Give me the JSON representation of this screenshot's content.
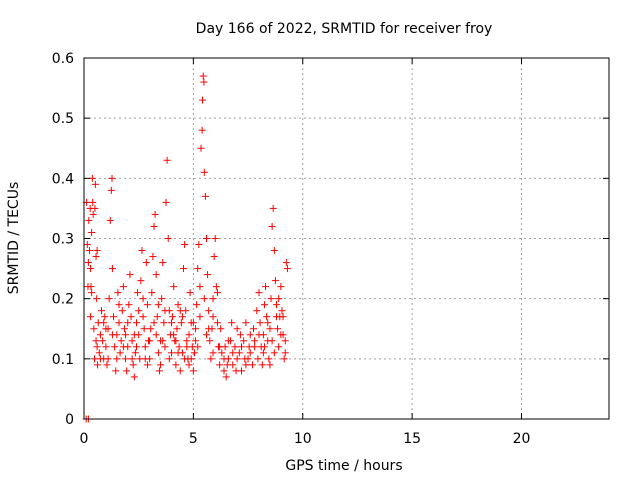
{
  "chart_data": {
    "type": "scatter",
    "title": "Day 166 of 2022, SRMTID for receiver froy",
    "xlabel": "GPS time / hours",
    "ylabel": "SRMTID / TECUs",
    "xlim": [
      0,
      24
    ],
    "ylim": [
      0,
      0.6
    ],
    "xticks": [
      0,
      5,
      10,
      15,
      20
    ],
    "xtick_labels": [
      "0",
      "5",
      "10",
      "15",
      "20"
    ],
    "yticks": [
      0,
      0.1,
      0.2,
      0.3,
      0.4,
      0.5,
      0.6
    ],
    "ytick_labels": [
      "0",
      "0.1",
      "0.2",
      "0.3",
      "0.4",
      "0.5",
      "0.6"
    ],
    "grid": true,
    "marker": "plus",
    "color": "#ff0000",
    "series": [
      {
        "name": "SRMTID",
        "points": [
          [
            0.1,
            0.0
          ],
          [
            0.2,
            0.0
          ],
          [
            0.12,
            0.36
          ],
          [
            0.15,
            0.29
          ],
          [
            0.18,
            0.22
          ],
          [
            0.2,
            0.26
          ],
          [
            0.22,
            0.33
          ],
          [
            0.25,
            0.28
          ],
          [
            0.28,
            0.35
          ],
          [
            0.3,
            0.25
          ],
          [
            0.32,
            0.22
          ],
          [
            0.35,
            0.31
          ],
          [
            0.38,
            0.4
          ],
          [
            0.4,
            0.36
          ],
          [
            0.42,
            0.34
          ],
          [
            0.45,
            0.15
          ],
          [
            0.48,
            0.1
          ],
          [
            0.5,
            0.35
          ],
          [
            0.52,
            0.39
          ],
          [
            0.55,
            0.27
          ],
          [
            0.58,
            0.2
          ],
          [
            0.6,
            0.12
          ],
          [
            0.62,
            0.09
          ],
          [
            0.65,
            0.16
          ],
          [
            0.7,
            0.11
          ],
          [
            0.75,
            0.14
          ],
          [
            0.8,
            0.18
          ],
          [
            0.85,
            0.13
          ],
          [
            0.9,
            0.1
          ],
          [
            0.95,
            0.17
          ],
          [
            1.0,
            0.12
          ],
          [
            1.05,
            0.09
          ],
          [
            1.1,
            0.15
          ],
          [
            1.15,
            0.2
          ],
          [
            1.2,
            0.33
          ],
          [
            1.25,
            0.38
          ],
          [
            1.28,
            0.4
          ],
          [
            1.3,
            0.25
          ],
          [
            1.35,
            0.17
          ],
          [
            1.4,
            0.12
          ],
          [
            1.45,
            0.08
          ],
          [
            1.5,
            0.14
          ],
          [
            1.55,
            0.21
          ],
          [
            1.6,
            0.16
          ],
          [
            1.65,
            0.11
          ],
          [
            1.7,
            0.13
          ],
          [
            1.75,
            0.18
          ],
          [
            1.8,
            0.22
          ],
          [
            1.85,
            0.15
          ],
          [
            1.9,
            0.1
          ],
          [
            1.95,
            0.08
          ],
          [
            2.0,
            0.12
          ],
          [
            2.05,
            0.19
          ],
          [
            2.1,
            0.24
          ],
          [
            2.15,
            0.17
          ],
          [
            2.2,
            0.13
          ],
          [
            2.25,
            0.09
          ],
          [
            2.3,
            0.07
          ],
          [
            2.35,
            0.11
          ],
          [
            2.4,
            0.16
          ],
          [
            2.45,
            0.21
          ],
          [
            2.5,
            0.14
          ],
          [
            2.55,
            0.1
          ],
          [
            2.6,
            0.23
          ],
          [
            2.65,
            0.28
          ],
          [
            2.7,
            0.2
          ],
          [
            2.75,
            0.15
          ],
          [
            2.8,
            0.12
          ],
          [
            2.85,
            0.26
          ],
          [
            2.9,
            0.19
          ],
          [
            2.95,
            0.13
          ],
          [
            3.0,
            0.1
          ],
          [
            3.05,
            0.15
          ],
          [
            3.1,
            0.21
          ],
          [
            3.15,
            0.27
          ],
          [
            3.2,
            0.32
          ],
          [
            3.25,
            0.34
          ],
          [
            3.3,
            0.24
          ],
          [
            3.35,
            0.17
          ],
          [
            3.4,
            0.11
          ],
          [
            3.45,
            0.08
          ],
          [
            3.5,
            0.13
          ],
          [
            3.55,
            0.2
          ],
          [
            3.6,
            0.26
          ],
          [
            3.65,
            0.16
          ],
          [
            3.7,
            0.12
          ],
          [
            3.75,
            0.36
          ],
          [
            3.8,
            0.43
          ],
          [
            3.85,
            0.3
          ],
          [
            3.9,
            0.18
          ],
          [
            3.95,
            0.14
          ],
          [
            4.0,
            0.11
          ],
          [
            4.05,
            0.17
          ],
          [
            4.1,
            0.22
          ],
          [
            4.15,
            0.13
          ],
          [
            4.2,
            0.09
          ],
          [
            4.25,
            0.15
          ],
          [
            4.3,
            0.19
          ],
          [
            4.35,
            0.12
          ],
          [
            4.4,
            0.08
          ],
          [
            4.45,
            0.16
          ],
          [
            4.5,
            0.11
          ],
          [
            4.55,
            0.25
          ],
          [
            4.6,
            0.29
          ],
          [
            4.65,
            0.18
          ],
          [
            4.7,
            0.13
          ],
          [
            4.75,
            0.1
          ],
          [
            4.8,
            0.14
          ],
          [
            4.85,
            0.21
          ],
          [
            4.9,
            0.16
          ],
          [
            4.95,
            0.12
          ],
          [
            5.0,
            0.08
          ],
          [
            5.05,
            0.11
          ],
          [
            5.1,
            0.15
          ],
          [
            5.15,
            0.19
          ],
          [
            5.2,
            0.25
          ],
          [
            5.25,
            0.29
          ],
          [
            5.3,
            0.22
          ],
          [
            5.35,
            0.45
          ],
          [
            5.4,
            0.48
          ],
          [
            5.42,
            0.53
          ],
          [
            5.45,
            0.57
          ],
          [
            5.48,
            0.56
          ],
          [
            5.5,
            0.41
          ],
          [
            5.55,
            0.37
          ],
          [
            5.6,
            0.3
          ],
          [
            5.65,
            0.24
          ],
          [
            5.7,
            0.18
          ],
          [
            5.75,
            0.13
          ],
          [
            5.8,
            0.1
          ],
          [
            5.85,
            0.15
          ],
          [
            5.9,
            0.2
          ],
          [
            5.95,
            0.27
          ],
          [
            6.0,
            0.3
          ],
          [
            6.05,
            0.22
          ],
          [
            6.1,
            0.16
          ],
          [
            6.15,
            0.12
          ],
          [
            6.2,
            0.09
          ],
          [
            6.3,
            0.11
          ],
          [
            6.4,
            0.08
          ],
          [
            6.5,
            0.07
          ],
          [
            6.6,
            0.1
          ],
          [
            6.7,
            0.13
          ],
          [
            6.8,
            0.09
          ],
          [
            6.9,
            0.12
          ],
          [
            7.0,
            0.15
          ],
          [
            7.1,
            0.11
          ],
          [
            7.2,
            0.08
          ],
          [
            7.3,
            0.13
          ],
          [
            7.4,
            0.16
          ],
          [
            7.5,
            0.1
          ],
          [
            7.6,
            0.14
          ],
          [
            7.7,
            0.09
          ],
          [
            7.8,
            0.12
          ],
          [
            7.9,
            0.18
          ],
          [
            8.0,
            0.21
          ],
          [
            8.05,
            0.16
          ],
          [
            8.1,
            0.12
          ],
          [
            8.15,
            0.09
          ],
          [
            8.2,
            0.14
          ],
          [
            8.25,
            0.19
          ],
          [
            8.3,
            0.22
          ],
          [
            8.35,
            0.17
          ],
          [
            8.4,
            0.13
          ],
          [
            8.45,
            0.1
          ],
          [
            8.5,
            0.15
          ],
          [
            8.55,
            0.2
          ],
          [
            8.6,
            0.32
          ],
          [
            8.65,
            0.35
          ],
          [
            8.7,
            0.28
          ],
          [
            8.75,
            0.23
          ],
          [
            8.8,
            0.19
          ],
          [
            8.85,
            0.15
          ],
          [
            8.9,
            0.12
          ],
          [
            8.95,
            0.17
          ],
          [
            9.0,
            0.22
          ],
          [
            9.05,
            0.18
          ],
          [
            9.1,
            0.14
          ],
          [
            9.15,
            0.1
          ],
          [
            9.2,
            0.13
          ],
          [
            9.25,
            0.26
          ],
          [
            9.3,
            0.25
          ],
          [
            0.35,
            0.21
          ],
          [
            0.6,
            0.28
          ],
          [
            0.9,
            0.16
          ],
          [
            1.1,
            0.1
          ],
          [
            1.6,
            0.19
          ],
          [
            1.9,
            0.14
          ],
          [
            2.2,
            0.1
          ],
          [
            2.4,
            0.12
          ],
          [
            2.7,
            0.17
          ],
          [
            2.9,
            0.09
          ],
          [
            3.3,
            0.14
          ],
          [
            3.5,
            0.09
          ],
          [
            3.7,
            0.18
          ],
          [
            4.0,
            0.16
          ],
          [
            4.2,
            0.13
          ],
          [
            4.4,
            0.18
          ],
          [
            4.6,
            0.1
          ],
          [
            4.8,
            0.09
          ],
          [
            5.0,
            0.16
          ],
          [
            5.2,
            0.12
          ],
          [
            5.6,
            0.14
          ],
          [
            5.9,
            0.11
          ],
          [
            6.1,
            0.21
          ],
          [
            6.25,
            0.15
          ],
          [
            6.45,
            0.12
          ],
          [
            6.55,
            0.09
          ],
          [
            6.75,
            0.16
          ],
          [
            6.95,
            0.08
          ],
          [
            7.15,
            0.14
          ],
          [
            7.35,
            0.1
          ],
          [
            7.55,
            0.12
          ],
          [
            7.75,
            0.15
          ],
          [
            7.95,
            0.1
          ],
          [
            8.25,
            0.12
          ],
          [
            8.5,
            0.09
          ],
          [
            8.7,
            0.11
          ],
          [
            8.9,
            0.2
          ],
          [
            9.1,
            0.17
          ],
          [
            0.3,
            0.17
          ],
          [
            0.55,
            0.13
          ],
          [
            0.75,
            0.1
          ],
          [
            1.0,
            0.15
          ],
          [
            1.3,
            0.14
          ],
          [
            1.5,
            0.1
          ],
          [
            1.8,
            0.12
          ],
          [
            2.0,
            0.16
          ],
          [
            2.3,
            0.14
          ],
          [
            2.5,
            0.18
          ],
          [
            2.8,
            0.1
          ],
          [
            3.0,
            0.13
          ],
          [
            3.2,
            0.16
          ],
          [
            3.4,
            0.19
          ],
          [
            3.6,
            0.13
          ],
          [
            3.9,
            0.1
          ],
          [
            4.1,
            0.14
          ],
          [
            4.3,
            0.11
          ],
          [
            4.5,
            0.17
          ],
          [
            4.7,
            0.12
          ],
          [
            4.9,
            0.1
          ],
          [
            5.1,
            0.13
          ],
          [
            5.3,
            0.17
          ],
          [
            5.5,
            0.2
          ],
          [
            5.7,
            0.15
          ],
          [
            5.9,
            0.17
          ],
          [
            6.2,
            0.12
          ],
          [
            6.4,
            0.1
          ],
          [
            6.6,
            0.13
          ],
          [
            6.8,
            0.11
          ],
          [
            7.0,
            0.1
          ],
          [
            7.2,
            0.12
          ],
          [
            7.4,
            0.09
          ],
          [
            7.6,
            0.11
          ],
          [
            7.8,
            0.13
          ],
          [
            8.0,
            0.14
          ],
          [
            8.2,
            0.11
          ],
          [
            8.4,
            0.16
          ],
          [
            8.6,
            0.13
          ],
          [
            8.8,
            0.17
          ],
          [
            9.0,
            0.14
          ],
          [
            9.2,
            0.11
          ]
        ]
      }
    ]
  }
}
